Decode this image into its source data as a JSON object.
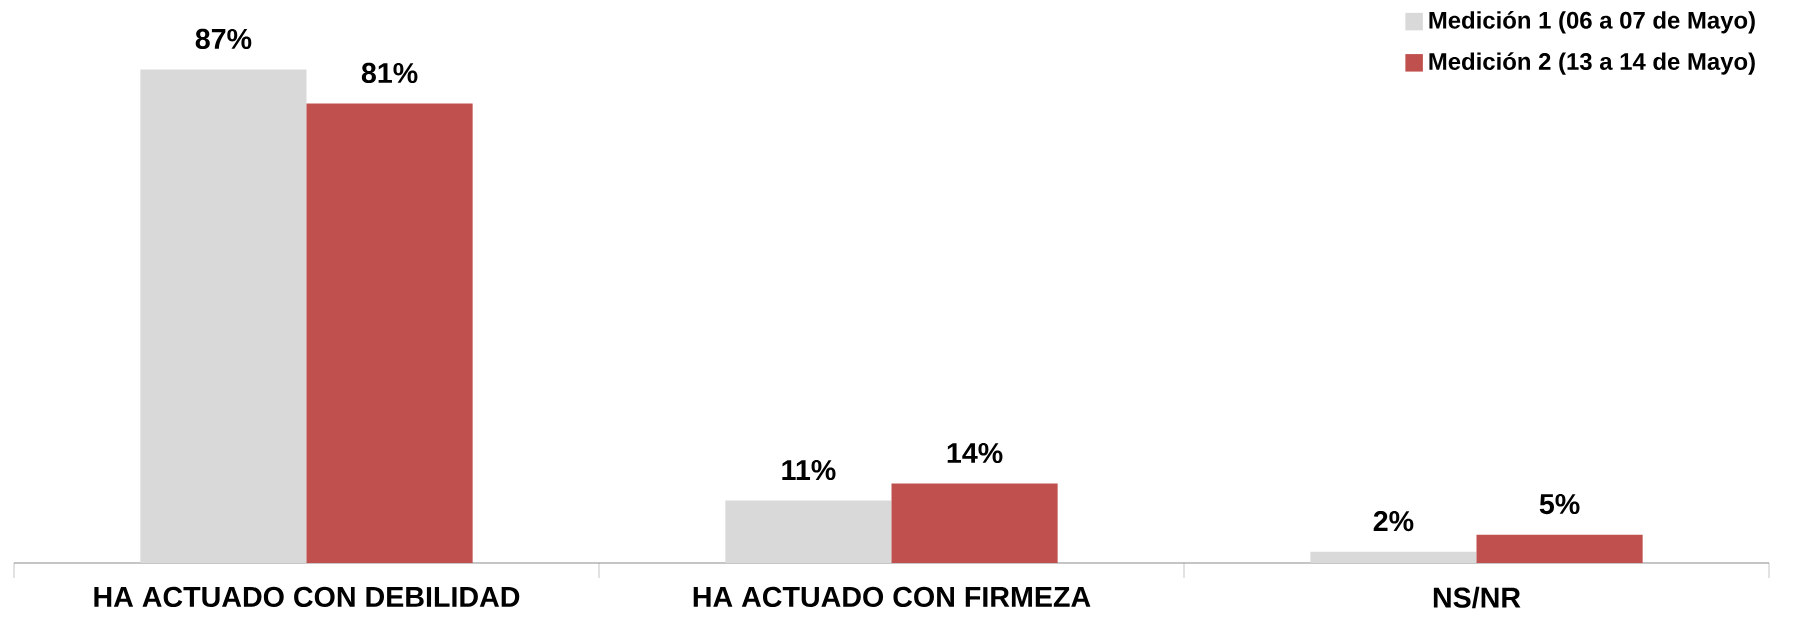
{
  "chart_data": {
    "type": "bar",
    "categories": [
      "HA ACTUADO CON DEBILIDAD",
      "HA ACTUADO CON FIRMEZA",
      "NS/NR"
    ],
    "series": [
      {
        "name": "Medición 1 (06 a 07 de Mayo)",
        "color": "#d9d9d9",
        "values": [
          87,
          11,
          2
        ],
        "value_labels": [
          "87%",
          "11%",
          "2%"
        ]
      },
      {
        "name": "Medición 2 (13 a 14 de Mayo)",
        "color": "#c0504d",
        "values": [
          81,
          14,
          5
        ],
        "value_labels": [
          "81%",
          "14%",
          "5%"
        ]
      }
    ],
    "legend": "top right"
  }
}
